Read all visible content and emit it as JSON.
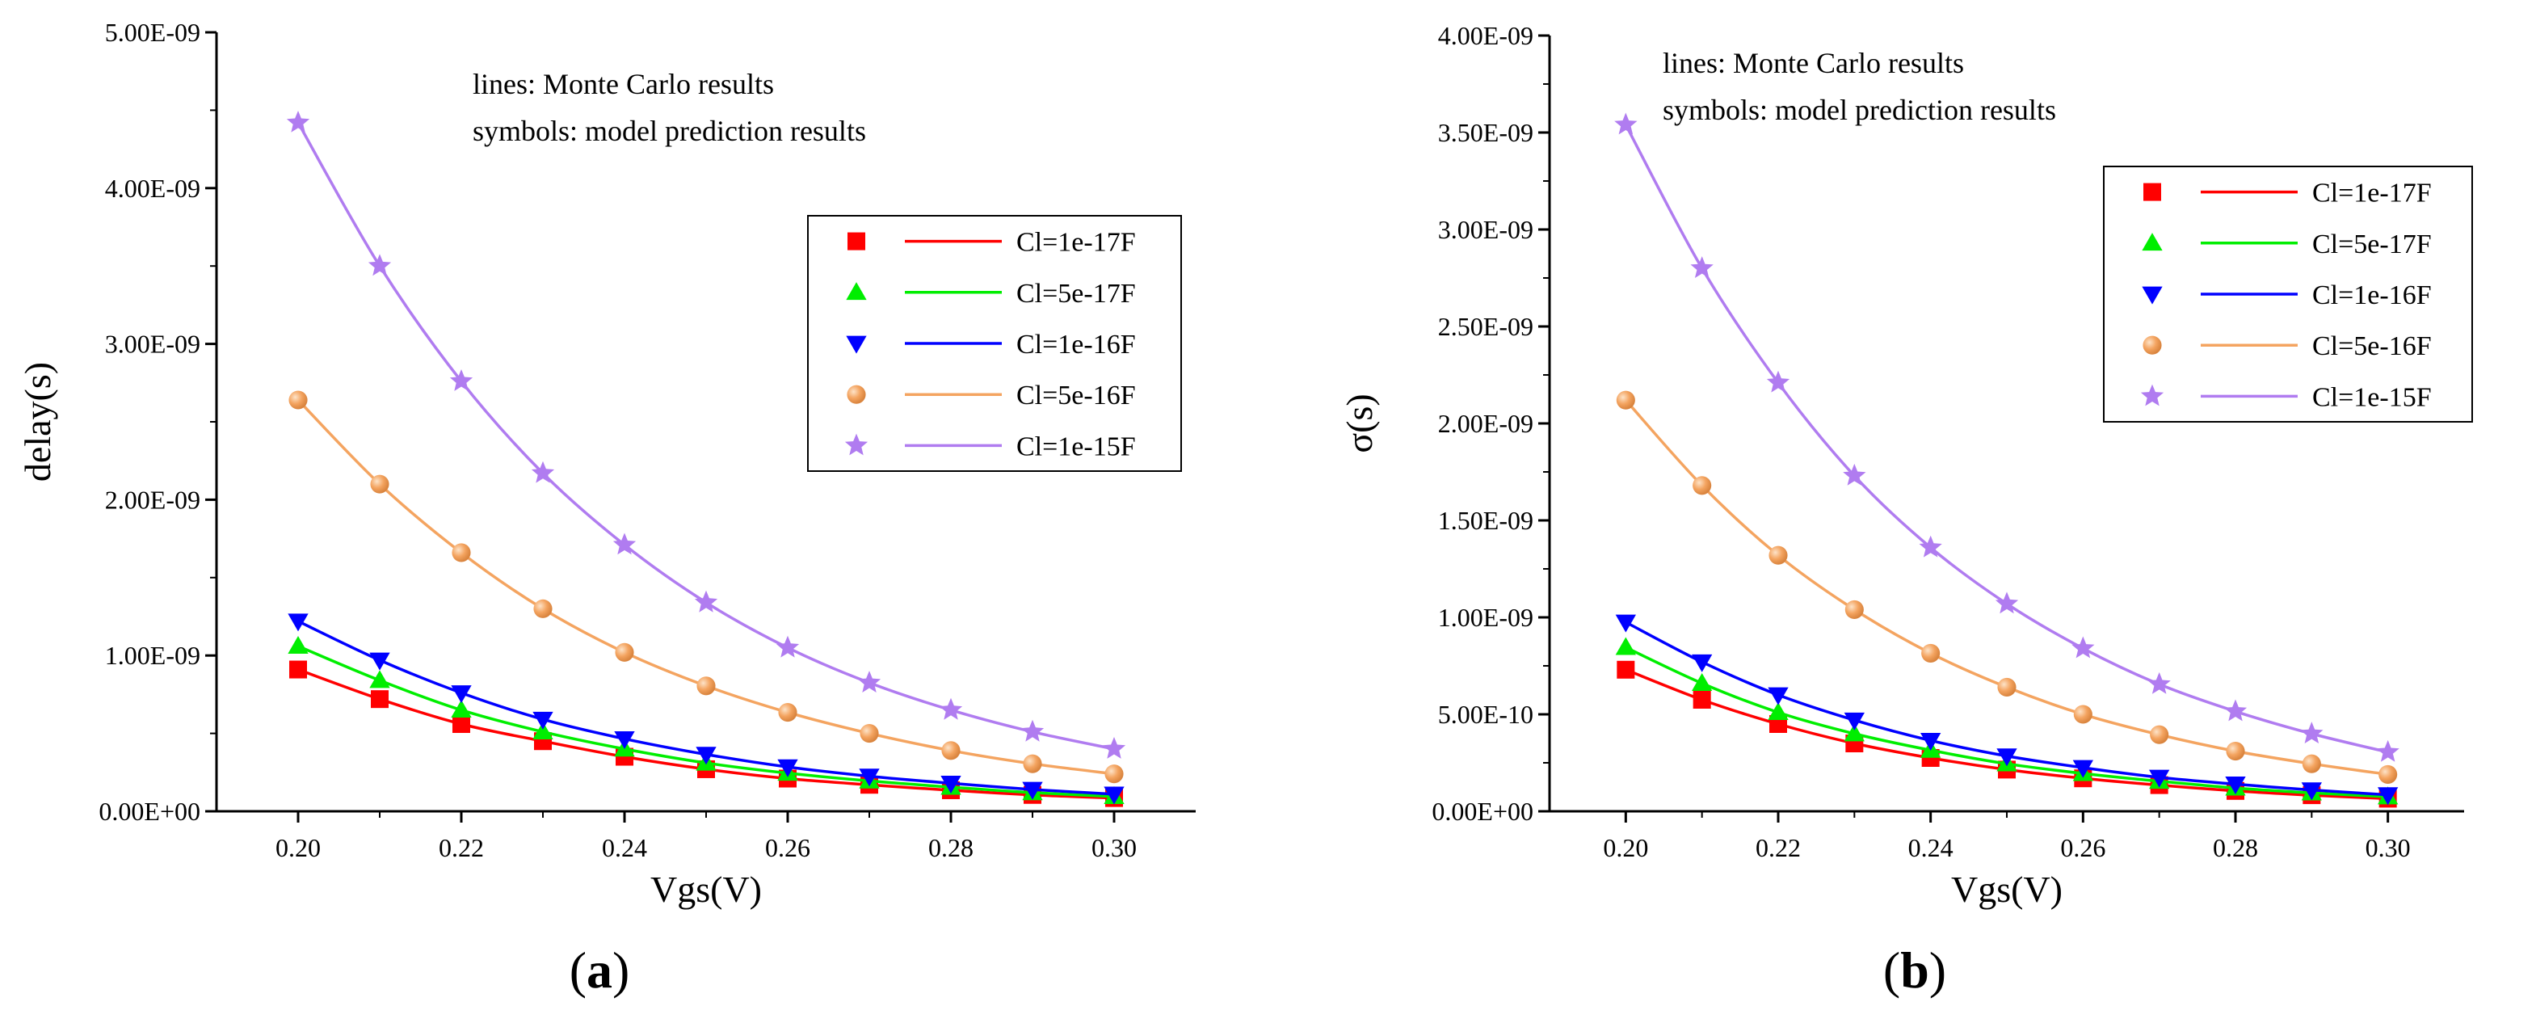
{
  "chart_data": [
    {
      "type": "line",
      "panel_label": "a",
      "xlabel": "Vgs(V)",
      "ylabel": "delay(s)",
      "xlim": [
        0.19,
        0.31
      ],
      "ylim": [
        0,
        5e-09
      ],
      "x_ticks": [
        0.2,
        0.22,
        0.24,
        0.26,
        0.28,
        0.3
      ],
      "x_tick_labels": [
        "0.20",
        "0.22",
        "0.24",
        "0.26",
        "0.28",
        "0.30"
      ],
      "y_ticks": [
        0,
        1e-09,
        2e-09,
        3e-09,
        4e-09,
        5e-09
      ],
      "y_tick_labels": [
        "0.00E+00",
        "1.00E-09",
        "2.00E-09",
        "3.00E-09",
        "4.00E-09",
        "5.00E-09"
      ],
      "annotations": [
        "lines: Monte Carlo results",
        "symbols: model prediction results"
      ],
      "legend_position": "center-right",
      "grid": false,
      "x": [
        0.2,
        0.21,
        0.22,
        0.23,
        0.24,
        0.25,
        0.26,
        0.27,
        0.28,
        0.29,
        0.3
      ],
      "series": [
        {
          "name": "Cl=1e-17F",
          "color": "#ff0000",
          "marker": "square",
          "values": [
            9.1e-10,
            7.2e-10,
            5.6e-10,
            4.5e-10,
            3.5e-10,
            2.7e-10,
            2.1e-10,
            1.7e-10,
            1.35e-10,
            1.05e-10,
            8.5e-11
          ]
        },
        {
          "name": "Cl=5e-17F",
          "color": "#00ee00",
          "marker": "triangle-up",
          "values": [
            1.06e-09,
            8.4e-10,
            6.5e-10,
            5.1e-10,
            4e-10,
            3.1e-10,
            2.45e-10,
            1.95e-10,
            1.55e-10,
            1.2e-10,
            9.5e-11
          ]
        },
        {
          "name": "Cl=1e-16F",
          "color": "#0000ff",
          "marker": "triangle-down",
          "values": [
            1.22e-09,
            9.7e-10,
            7.6e-10,
            5.9e-10,
            4.65e-10,
            3.65e-10,
            2.85e-10,
            2.25e-10,
            1.8e-10,
            1.4e-10,
            1.1e-10
          ]
        },
        {
          "name": "Cl=5e-16F",
          "color": "#f4a460",
          "marker": "sphere",
          "values": [
            2.64e-09,
            2.1e-09,
            1.66e-09,
            1.3e-09,
            1.02e-09,
            8.05e-10,
            6.35e-10,
            5e-10,
            3.9e-10,
            3.05e-10,
            2.4e-10
          ]
        },
        {
          "name": "Cl=1e-15F",
          "color": "#b07cf0",
          "marker": "star",
          "values": [
            4.42e-09,
            3.5e-09,
            2.76e-09,
            2.17e-09,
            1.71e-09,
            1.34e-09,
            1.05e-09,
            8.25e-10,
            6.5e-10,
            5.1e-10,
            4e-10
          ]
        }
      ]
    },
    {
      "type": "line",
      "panel_label": "b",
      "xlabel": "Vgs(V)",
      "ylabel": "σ(s)",
      "xlim": [
        0.19,
        0.31
      ],
      "ylim": [
        0,
        4e-09
      ],
      "x_ticks": [
        0.2,
        0.22,
        0.24,
        0.26,
        0.28,
        0.3
      ],
      "x_tick_labels": [
        "0.20",
        "0.22",
        "0.24",
        "0.26",
        "0.28",
        "0.30"
      ],
      "y_ticks": [
        0,
        5e-10,
        1e-09,
        1.5e-09,
        2e-09,
        2.5e-09,
        3e-09,
        3.5e-09,
        4e-09
      ],
      "y_tick_labels": [
        "0.00E+00",
        "5.00E-10",
        "1.00E-09",
        "1.50E-09",
        "2.00E-09",
        "2.50E-09",
        "3.00E-09",
        "3.50E-09",
        "4.00E-09"
      ],
      "annotations": [
        "lines: Monte Carlo results",
        "symbols: model prediction results"
      ],
      "legend_position": "top-right",
      "grid": false,
      "x": [
        0.2,
        0.21,
        0.22,
        0.23,
        0.24,
        0.25,
        0.26,
        0.27,
        0.28,
        0.29,
        0.3
      ],
      "series": [
        {
          "name": "Cl=1e-17F",
          "color": "#ff0000",
          "marker": "square",
          "values": [
            7.3e-10,
            5.75e-10,
            4.5e-10,
            3.5e-10,
            2.75e-10,
            2.15e-10,
            1.7e-10,
            1.35e-10,
            1.05e-10,
            8.3e-11,
            6.5e-11
          ]
        },
        {
          "name": "Cl=5e-17F",
          "color": "#00ee00",
          "marker": "triangle-up",
          "values": [
            8.45e-10,
            6.6e-10,
            5.1e-10,
            4e-10,
            3.15e-10,
            2.45e-10,
            1.95e-10,
            1.55e-10,
            1.2e-10,
            9.5e-11,
            7.5e-11
          ]
        },
        {
          "name": "Cl=1e-16F",
          "color": "#0000ff",
          "marker": "triangle-down",
          "values": [
            9.75e-10,
            7.7e-10,
            6e-10,
            4.7e-10,
            3.65e-10,
            2.85e-10,
            2.25e-10,
            1.75e-10,
            1.4e-10,
            1.1e-10,
            8.5e-11
          ]
        },
        {
          "name": "Cl=5e-16F",
          "color": "#f4a460",
          "marker": "sphere",
          "values": [
            2.12e-09,
            1.68e-09,
            1.32e-09,
            1.04e-09,
            8.15e-10,
            6.4e-10,
            5e-10,
            3.95e-10,
            3.1e-10,
            2.45e-10,
            1.9e-10
          ]
        },
        {
          "name": "Cl=1e-15F",
          "color": "#b07cf0",
          "marker": "star",
          "values": [
            3.54e-09,
            2.8e-09,
            2.21e-09,
            1.73e-09,
            1.36e-09,
            1.07e-09,
            8.4e-10,
            6.55e-10,
            5.15e-10,
            4e-10,
            3.05e-10
          ]
        }
      ]
    }
  ]
}
